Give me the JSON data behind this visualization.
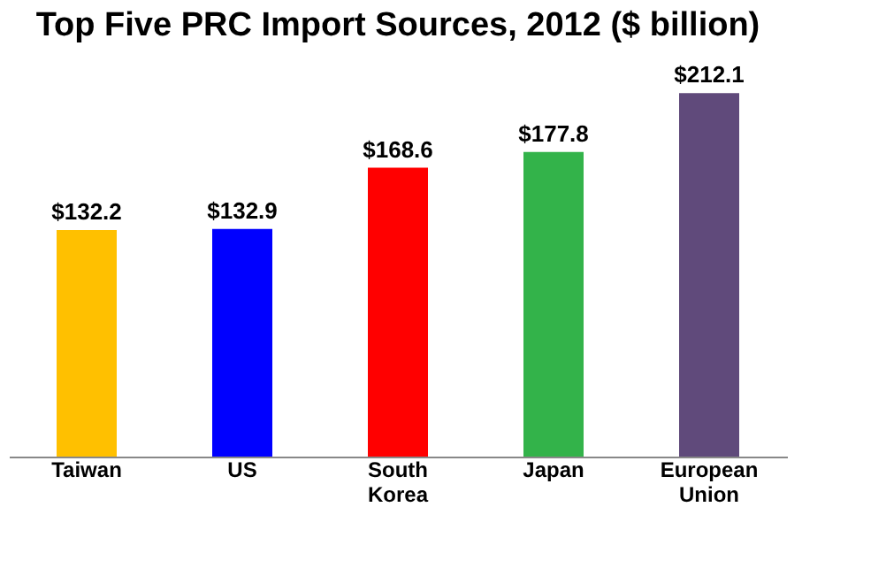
{
  "chart_data": {
    "type": "bar",
    "title": "Top Five PRC Import Sources, 2012 ($ billion)",
    "categories": [
      "Taiwan",
      "US",
      "South Korea",
      "Japan",
      "European Union"
    ],
    "values": [
      132.2,
      132.9,
      168.6,
      177.8,
      212.1
    ],
    "colors": [
      "#ffc000",
      "#0000ff",
      "#ff0000",
      "#33b34a",
      "#604a7b"
    ],
    "value_labels": [
      "$132.2",
      "$132.9",
      "$168.6",
      "$177.8",
      "$212.1"
    ],
    "grid": false
  }
}
